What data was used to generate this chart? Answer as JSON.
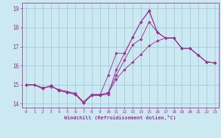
{
  "xlabel": "Windchill (Refroidissement éolien,°C)",
  "ylabel": "",
  "xlim": [
    -0.5,
    23.5
  ],
  "ylim": [
    13.8,
    19.3
  ],
  "yticks": [
    14,
    15,
    16,
    17,
    18,
    19
  ],
  "xticks": [
    0,
    1,
    2,
    3,
    4,
    5,
    6,
    7,
    8,
    9,
    10,
    11,
    12,
    13,
    14,
    15,
    16,
    17,
    18,
    19,
    20,
    21,
    22,
    23
  ],
  "bg_color": "#cce8f0",
  "line_color": "#993399",
  "grid_color": "#99ccdd",
  "lines": [
    {
      "x": [
        0,
        1,
        2,
        3,
        4,
        5,
        6,
        7,
        8,
        9,
        10,
        11,
        12,
        13,
        14,
        15,
        16,
        17,
        18,
        19,
        20,
        21,
        22,
        23
      ],
      "y": [
        15.0,
        15.0,
        14.85,
        14.9,
        14.75,
        14.65,
        14.55,
        14.1,
        14.5,
        14.5,
        14.55,
        15.3,
        15.8,
        16.2,
        16.6,
        17.05,
        17.3,
        17.45,
        17.45,
        16.9,
        16.9,
        16.55,
        16.2,
        16.15
      ]
    },
    {
      "x": [
        0,
        1,
        2,
        3,
        4,
        5,
        6,
        7,
        8,
        9,
        10,
        11,
        12,
        13,
        14,
        15,
        16,
        17,
        18,
        19,
        20,
        21,
        22,
        23
      ],
      "y": [
        15.0,
        15.0,
        14.8,
        14.95,
        14.7,
        14.6,
        14.5,
        14.05,
        14.45,
        14.45,
        14.6,
        15.5,
        16.3,
        17.1,
        17.4,
        18.3,
        17.75,
        17.45,
        17.45,
        16.9,
        16.9,
        16.55,
        16.2,
        16.15
      ]
    },
    {
      "x": [
        0,
        1,
        2,
        3,
        4,
        5,
        6,
        7,
        8,
        9,
        10,
        11,
        12,
        13,
        14,
        15,
        16,
        17,
        18,
        19,
        20,
        21,
        22,
        23
      ],
      "y": [
        15.0,
        15.0,
        14.8,
        14.95,
        14.7,
        14.6,
        14.5,
        14.05,
        14.45,
        14.45,
        14.5,
        15.8,
        16.65,
        17.5,
        18.3,
        18.85,
        17.75,
        17.45,
        17.45,
        16.9,
        16.9,
        16.55,
        16.2,
        16.15
      ]
    },
    {
      "x": [
        0,
        1,
        2,
        3,
        4,
        5,
        6,
        7,
        8,
        9,
        10,
        11,
        12,
        13,
        14,
        15,
        16,
        17,
        18,
        19,
        20,
        21,
        22,
        23
      ],
      "y": [
        15.0,
        15.0,
        14.8,
        14.95,
        14.7,
        14.6,
        14.5,
        14.05,
        14.45,
        14.45,
        15.5,
        16.65,
        16.65,
        17.5,
        18.3,
        18.9,
        17.75,
        17.45,
        17.45,
        16.9,
        16.9,
        16.55,
        16.2,
        16.15
      ]
    }
  ]
}
